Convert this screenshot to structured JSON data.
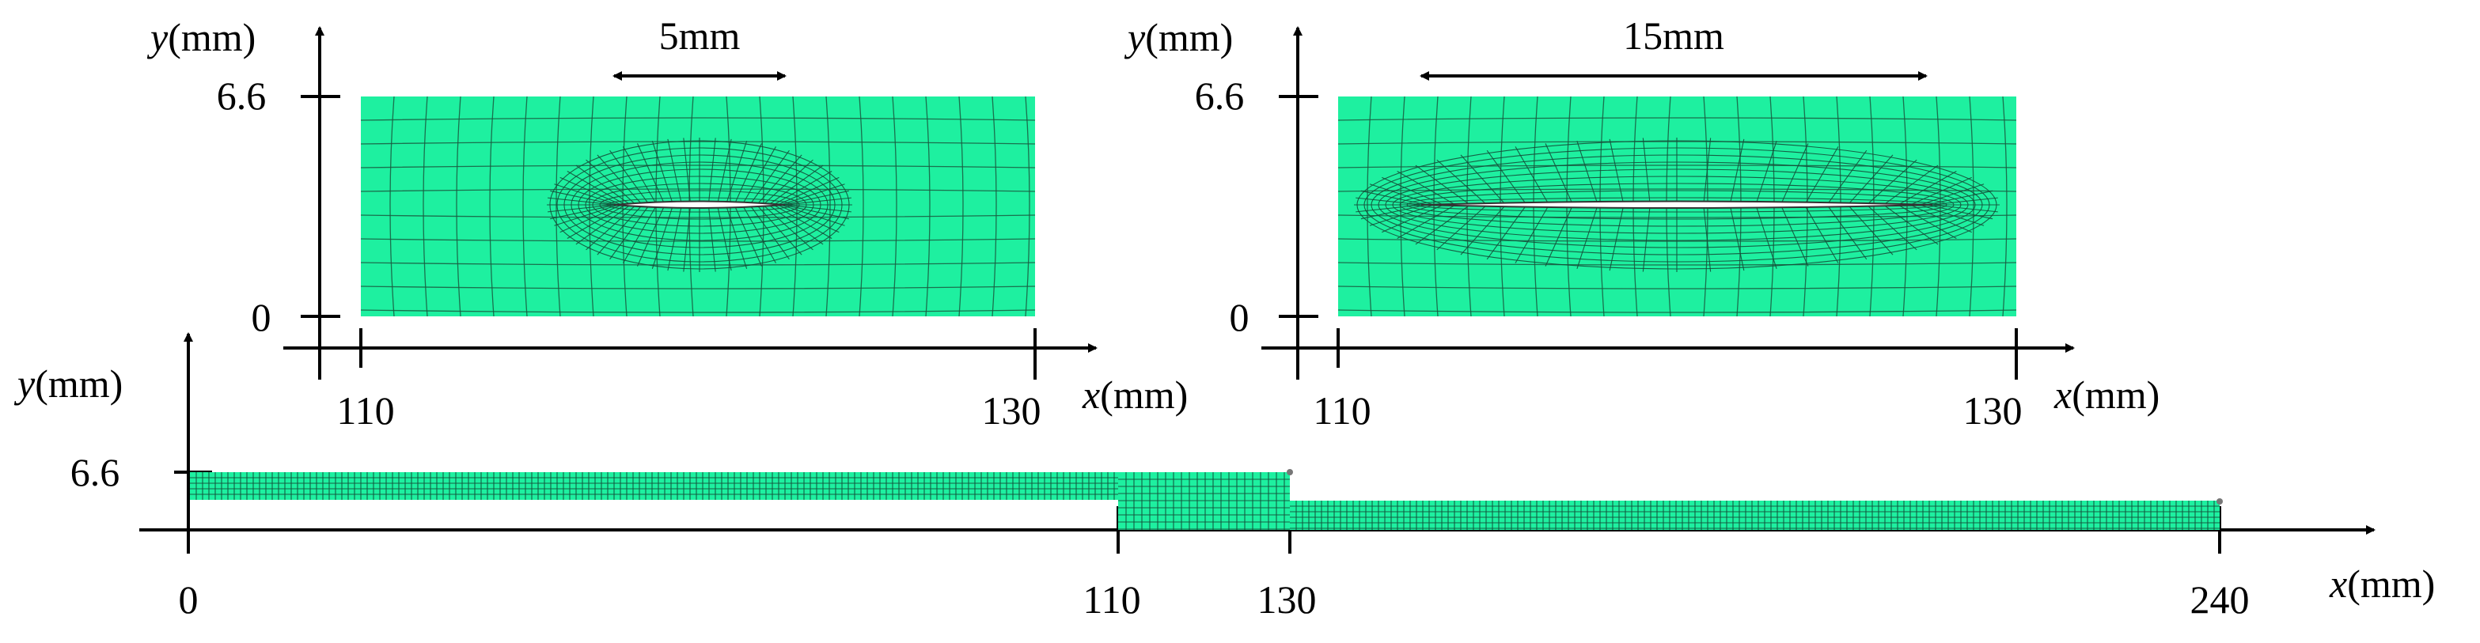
{
  "panels": {
    "top_left": {
      "y_axis_label": "(mm)",
      "y_axis_var": "y",
      "x_axis_label": "(mm)",
      "x_axis_var": "x",
      "y_ticks": [
        "6.6",
        "0"
      ],
      "x_ticks": [
        "110",
        "130"
      ],
      "dimension_label": "5mm"
    },
    "top_right": {
      "y_axis_label": "(mm)",
      "y_axis_var": "y",
      "x_axis_label": "(mm)",
      "x_axis_var": "x",
      "y_ticks": [
        "6.6",
        "0"
      ],
      "x_ticks": [
        "110",
        "130"
      ],
      "dimension_label": "15mm"
    },
    "bottom": {
      "y_axis_label": "(mm)",
      "y_axis_var": "y",
      "x_axis_label": "(mm)",
      "x_axis_var": "x",
      "y_ticks": [
        "6.6"
      ],
      "x_ticks": [
        "0",
        "110",
        "130",
        "240"
      ]
    }
  },
  "colors": {
    "mesh_fill": "#1ef0a0",
    "mesh_line": "#1a5a40",
    "axis": "#000000"
  }
}
